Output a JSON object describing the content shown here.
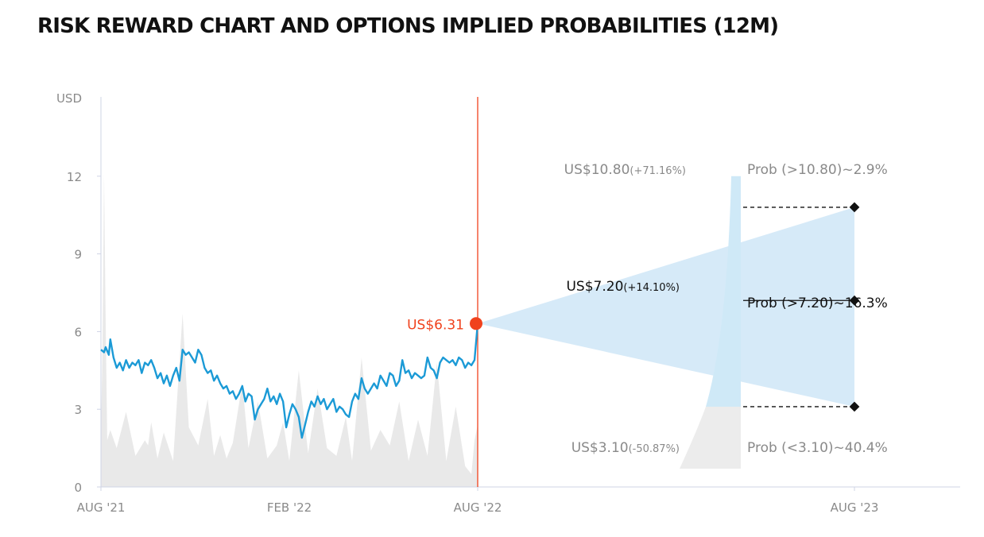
{
  "title": "RISK REWARD CHART AND OPTIONS IMPLIED PROBABILITIES (12M)",
  "colors": {
    "price_line": "#1b9ad6",
    "volume_fill": "#e9e9e9",
    "cone_fill": "#d6eaf8",
    "current_marker": "#f0421d",
    "axis": "#cfd4e6",
    "distribution_blue": "#cfe9f7",
    "distribution_grey": "#ececec"
  },
  "chart_data": {
    "type": "line",
    "y_unit_label": "USD",
    "ylim": [
      0,
      15
    ],
    "y_ticks": [
      "0",
      "3",
      "6",
      "9",
      "12"
    ],
    "x_ticks": [
      "AUG '21",
      "FEB '22",
      "AUG '22",
      "AUG '23"
    ],
    "grid": false,
    "price_series": {
      "x_months": [
        0,
        0.1,
        0.15,
        0.25,
        0.3,
        0.4,
        0.5,
        0.6,
        0.7,
        0.8,
        0.9,
        1.0,
        1.1,
        1.2,
        1.3,
        1.4,
        1.5,
        1.6,
        1.7,
        1.8,
        1.9,
        2.0,
        2.1,
        2.2,
        2.3,
        2.4,
        2.5,
        2.6,
        2.7,
        2.8,
        2.9,
        3.0,
        3.1,
        3.2,
        3.3,
        3.4,
        3.5,
        3.6,
        3.7,
        3.8,
        3.9,
        4.0,
        4.1,
        4.2,
        4.3,
        4.4,
        4.5,
        4.6,
        4.7,
        4.8,
        4.9,
        5.0,
        5.1,
        5.2,
        5.3,
        5.4,
        5.5,
        5.6,
        5.7,
        5.8,
        5.9,
        6.0,
        6.1,
        6.2,
        6.3,
        6.4,
        6.5,
        6.6,
        6.7,
        6.8,
        6.9,
        7.0,
        7.1,
        7.2,
        7.3,
        7.4,
        7.5,
        7.6,
        7.7,
        7.8,
        7.9,
        8.0,
        8.1,
        8.2,
        8.3,
        8.4,
        8.5,
        8.6,
        8.7,
        8.8,
        8.9,
        9.0,
        9.1,
        9.2,
        9.3,
        9.4,
        9.5,
        9.6,
        9.7,
        9.8,
        9.9,
        10.0,
        10.1,
        10.2,
        10.3,
        10.4,
        10.5,
        10.6,
        10.7,
        10.8,
        10.9,
        11.0,
        11.1,
        11.2,
        11.3,
        11.4,
        11.5,
        11.6,
        11.7,
        11.8,
        11.9,
        12.0
      ],
      "values": [
        5.3,
        5.2,
        5.4,
        5.1,
        5.7,
        5.0,
        4.6,
        4.8,
        4.5,
        4.9,
        4.6,
        4.8,
        4.7,
        4.9,
        4.4,
        4.8,
        4.7,
        4.9,
        4.6,
        4.2,
        4.4,
        4.0,
        4.3,
        3.9,
        4.3,
        4.6,
        4.1,
        5.3,
        5.1,
        5.2,
        5.0,
        4.8,
        5.3,
        5.1,
        4.6,
        4.4,
        4.5,
        4.1,
        4.3,
        4.0,
        3.8,
        3.9,
        3.6,
        3.7,
        3.4,
        3.6,
        3.9,
        3.3,
        3.6,
        3.5,
        2.6,
        3.0,
        3.2,
        3.4,
        3.8,
        3.3,
        3.5,
        3.2,
        3.6,
        3.3,
        2.3,
        2.8,
        3.2,
        3.0,
        2.7,
        1.9,
        2.4,
        2.9,
        3.3,
        3.1,
        3.5,
        3.2,
        3.4,
        3.0,
        3.2,
        3.4,
        2.9,
        3.1,
        3.0,
        2.8,
        2.7,
        3.3,
        3.6,
        3.4,
        4.2,
        3.8,
        3.6,
        3.8,
        4.0,
        3.8,
        4.3,
        4.1,
        3.9,
        4.4,
        4.3,
        3.9,
        4.1,
        4.9,
        4.4,
        4.5,
        4.2,
        4.4,
        4.3,
        4.2,
        4.3,
        5.0,
        4.6,
        4.5,
        4.2,
        4.8,
        5.0,
        4.9,
        4.8,
        4.9,
        4.7,
        5.0,
        4.9,
        4.6,
        4.8,
        4.7,
        4.9,
        6.31
      ]
    },
    "volume_series": {
      "x_months": [
        0,
        0.05,
        0.1,
        0.15,
        0.2,
        0.3,
        0.5,
        0.8,
        1.1,
        1.4,
        1.5,
        1.6,
        1.8,
        2.0,
        2.3,
        2.6,
        2.8,
        3.1,
        3.4,
        3.6,
        3.8,
        4.0,
        4.2,
        4.5,
        4.7,
        5.0,
        5.3,
        5.6,
        5.8,
        6.0,
        6.3,
        6.6,
        6.9,
        7.2,
        7.5,
        7.8,
        8.0,
        8.3,
        8.6,
        8.9,
        9.2,
        9.5,
        9.8,
        10.1,
        10.4,
        10.7,
        11.0,
        11.3,
        11.6,
        11.8,
        11.9,
        12.0
      ],
      "values": [
        2.0,
        5.5,
        12.1,
        6.5,
        1.8,
        2.2,
        1.5,
        2.9,
        1.2,
        1.8,
        1.6,
        2.5,
        1.1,
        2.1,
        1.0,
        6.7,
        2.3,
        1.6,
        3.4,
        1.2,
        2.0,
        1.1,
        1.7,
        4.0,
        1.5,
        3.3,
        1.1,
        1.6,
        2.5,
        1.0,
        4.5,
        1.3,
        3.8,
        1.5,
        1.2,
        2.7,
        1.0,
        5.0,
        1.4,
        2.2,
        1.6,
        3.3,
        1.0,
        2.6,
        1.2,
        4.8,
        1.0,
        3.1,
        0.8,
        0.5,
        1.8,
        2.4
      ]
    },
    "current_price": {
      "label": "US$6.31",
      "value": 6.31
    },
    "targets": [
      {
        "price": 10.8,
        "label": "US$10.80",
        "change": "(+71.16%)",
        "prob": "Prob (>10.80)~2.9%"
      },
      {
        "price": 7.2,
        "label": "US$7.20",
        "change": "(+14.10%)",
        "prob": "Prob (>7.20)~16.3%"
      },
      {
        "price": 3.1,
        "label": "US$3.10",
        "change": "(-50.87%)",
        "prob": "Prob (<3.10)~40.4%"
      }
    ],
    "annotations": [
      "options-implied price range cone",
      "implied probability distribution"
    ]
  }
}
